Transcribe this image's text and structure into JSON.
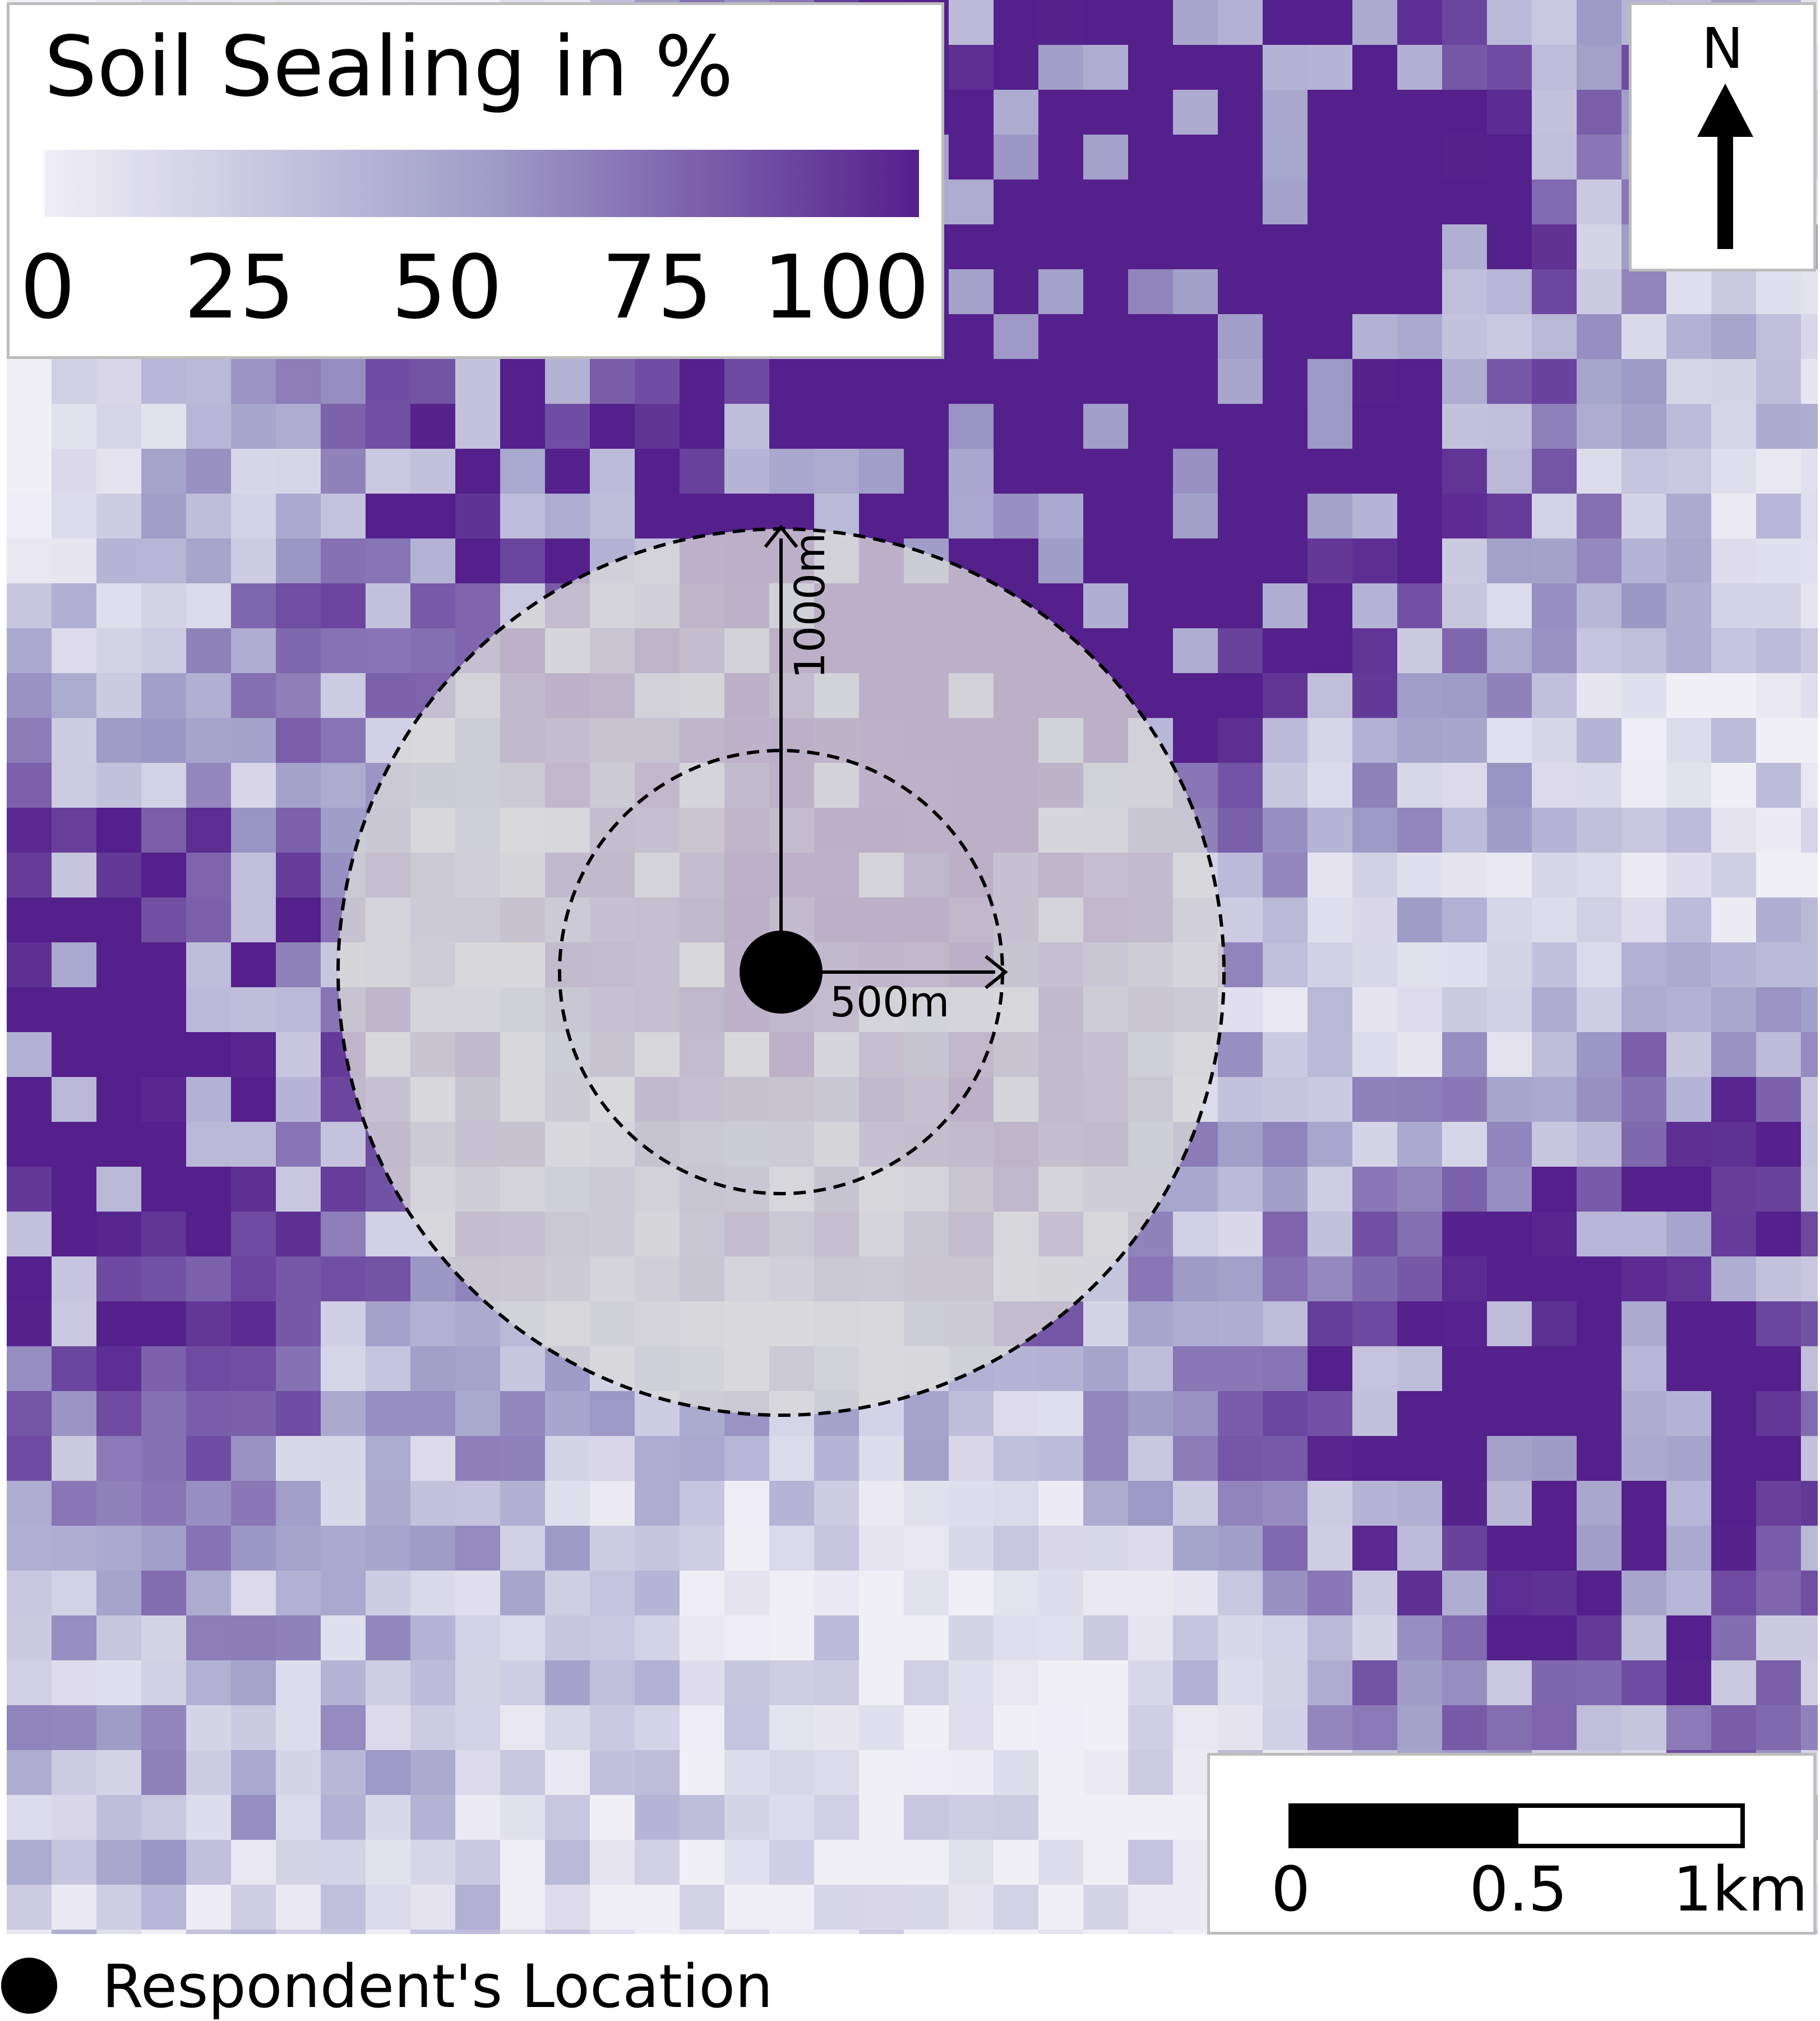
{
  "legend": {
    "title": "Soil Sealing in %",
    "ticks": [
      "0",
      "25",
      "50",
      "75",
      "100"
    ],
    "tick_values": [
      0,
      25,
      50,
      75,
      100
    ],
    "range": [
      0,
      100
    ],
    "color_low": "#f0eff6",
    "color_high": "#54208c"
  },
  "north_arrow": {
    "label": "N"
  },
  "scale_bar": {
    "ticks": [
      "0",
      "0.5",
      "1km"
    ],
    "tick_values_km": [
      0,
      0.5,
      1
    ]
  },
  "buffers": {
    "outer_label": "1000m",
    "outer_radius_m": 1000,
    "inner_label": "500m",
    "inner_radius_m": 500,
    "fill_color": "#d9d9d9",
    "line_style": "dashed"
  },
  "footer_legend": {
    "label": "Respondent's Location"
  },
  "map": {
    "cell_size_m": 80,
    "raster_rows": [
      "4000000000000000000000000000000009888858866454466543363234",
      "4000000000000000000000000000000009899977656899999655357426",
      "4000000000000000000000000000000008889886544579999862355338",
      "4000000000000000000000000000000009999889898864224556228453",
      "4000000000000000000000000000000007998996566677559976538644",
      "4000000000000000000000000000000007799659967655654447544766",
      "8007757678007765767000300000000080457662443567769755355346",
      "8002223000000000000000000000000000000000000000000000000000"
    ],
    "note": "raster rendered procedurally"
  }
}
